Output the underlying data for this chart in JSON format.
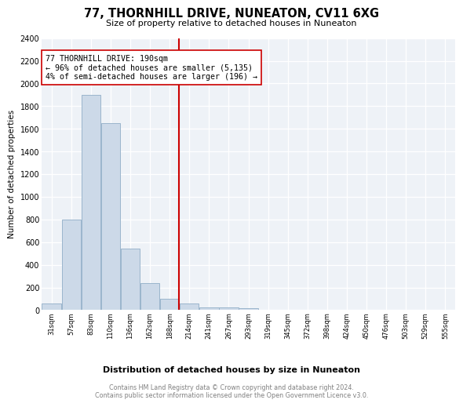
{
  "title": "77, THORNHILL DRIVE, NUNEATON, CV11 6XG",
  "subtitle": "Size of property relative to detached houses in Nuneaton",
  "xlabel": "Distribution of detached houses by size in Nuneaton",
  "ylabel": "Number of detached properties",
  "bar_color": "#ccd9e8",
  "bar_edge_color": "#9ab5cc",
  "vline_color": "#cc0000",
  "annotation_text": "77 THORNHILL DRIVE: 190sqm\n← 96% of detached houses are smaller (5,135)\n4% of semi-detached houses are larger (196) →",
  "annotation_box_edge": "#cc0000",
  "categories": [
    "31sqm",
    "57sqm",
    "83sqm",
    "110sqm",
    "136sqm",
    "162sqm",
    "188sqm",
    "214sqm",
    "241sqm",
    "267sqm",
    "293sqm",
    "319sqm",
    "345sqm",
    "372sqm",
    "398sqm",
    "424sqm",
    "450sqm",
    "476sqm",
    "503sqm",
    "529sqm",
    "555sqm"
  ],
  "values": [
    60,
    800,
    1900,
    1650,
    540,
    240,
    100,
    55,
    25,
    25,
    20,
    0,
    0,
    0,
    0,
    0,
    0,
    0,
    0,
    0,
    0
  ],
  "vline_bin_index": 6,
  "ylim": [
    0,
    2400
  ],
  "yticks": [
    0,
    200,
    400,
    600,
    800,
    1000,
    1200,
    1400,
    1600,
    1800,
    2000,
    2200,
    2400
  ],
  "footer": "Contains HM Land Registry data © Crown copyright and database right 2024.\nContains public sector information licensed under the Open Government Licence v3.0.",
  "background_color": "#eef2f7"
}
